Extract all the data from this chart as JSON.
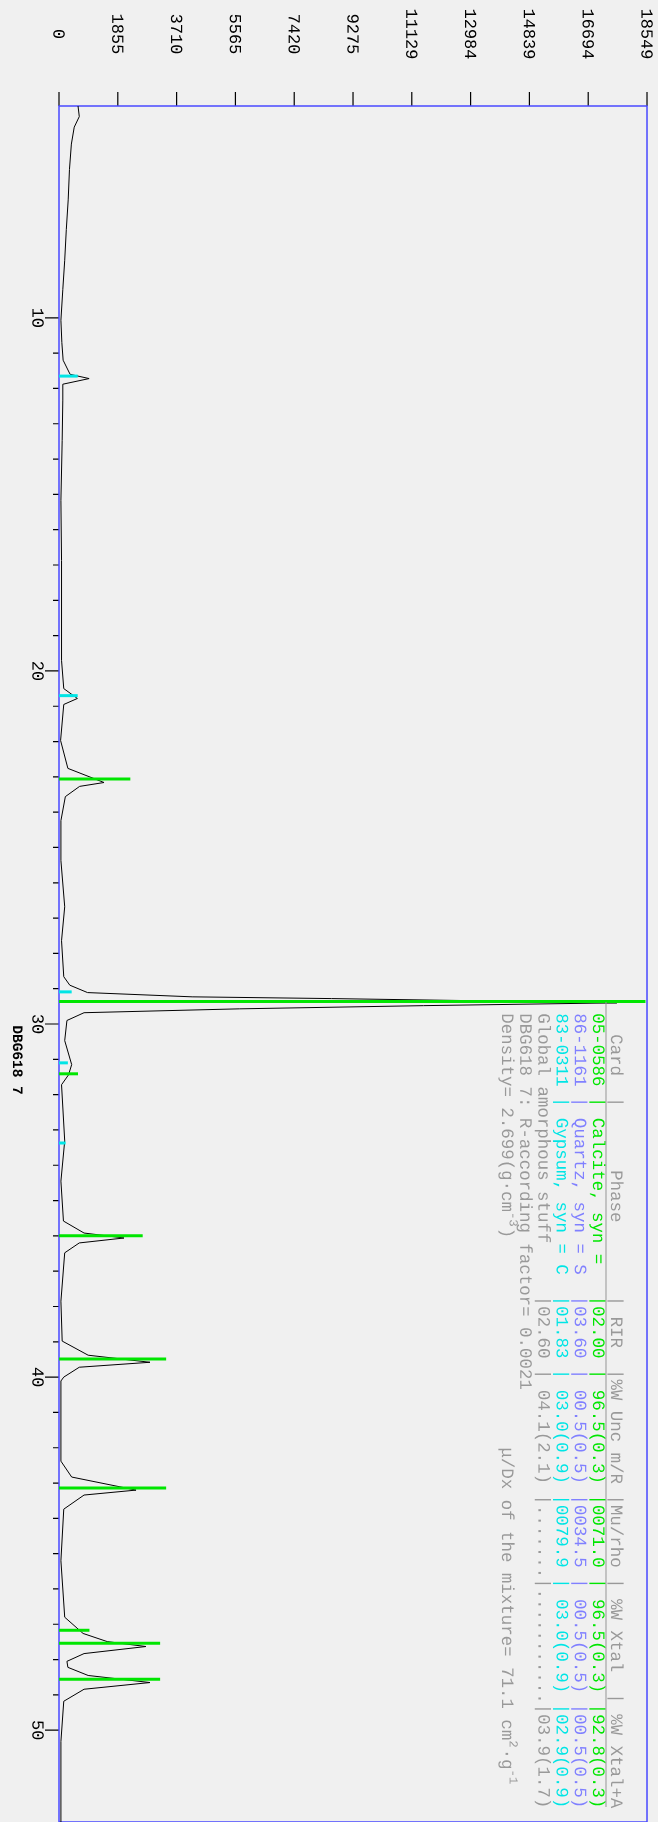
{
  "chart_data": {
    "type": "line",
    "orientation": "horizontal",
    "xlim": [
      0,
      18549
    ],
    "ylim": [
      52.6,
      4
    ],
    "xticks": [
      0,
      1855,
      3710,
      5565,
      7420,
      9275,
      11129,
      12984,
      14839,
      16694,
      18549
    ],
    "yticks": [
      10,
      20,
      30,
      40,
      50
    ],
    "series": [
      {
        "color": "#000000",
        "x": [
          4.0,
          4.3,
          4.6,
          5.08,
          5.8,
          6.66,
          7.5,
          8.37,
          9.2,
          10.07,
          10.7,
          11.2,
          11.6,
          11.72,
          11.88,
          12.33,
          13.47,
          15.17,
          16.87,
          17.43,
          19.7,
          20.5,
          20.78,
          20.95,
          21.97,
          22.76,
          23.16,
          23.27,
          23.56,
          24.24,
          25.37,
          26.68,
          27.64,
          28.66,
          28.9,
          29.11,
          29.23,
          29.28,
          29.4,
          29.48,
          29.57,
          29.68,
          29.9,
          30.47,
          31.15,
          31.44,
          31.72,
          33.31,
          34.45,
          35.58,
          35.92,
          36.06,
          36.2,
          36.48,
          37.85,
          38.98,
          39.38,
          39.58,
          39.72,
          40.0,
          40.11,
          42.38,
          42.83,
          43.2,
          43.34,
          43.74,
          45.2,
          46.8,
          47.26,
          47.49,
          47.63,
          47.83,
          48.05,
          48.22,
          48.45,
          48.65,
          48.84,
          49.18,
          50.32,
          52.6
        ],
        "values": [
          600,
          640,
          480,
          390,
          330,
          290,
          230,
          180,
          120,
          60,
          90,
          130,
          350,
          950,
          120,
          120,
          100,
          60,
          80,
          80,
          80,
          150,
          580,
          150,
          50,
          280,
          1420,
          650,
          200,
          60,
          60,
          180,
          80,
          150,
          340,
          900,
          4200,
          8600,
          17600,
          11500,
          5700,
          790,
          250,
          180,
          400,
          300,
          80,
          180,
          60,
          140,
          790,
          2050,
          640,
          180,
          60,
          100,
          920,
          2870,
          640,
          150,
          60,
          60,
          400,
          2430,
          790,
          150,
          60,
          180,
          760,
          1520,
          2740,
          790,
          250,
          280,
          920,
          2870,
          790,
          150,
          60,
          60
        ]
      },
      {
        "type": "bar",
        "color": "#00e600",
        "x": [
          23.06,
          29.36,
          31.41,
          36.0,
          39.49,
          43.14,
          47.17,
          47.54,
          48.56
        ],
        "values": [
          2250,
          18500,
          600,
          2640,
          3380,
          3380,
          960,
          3190,
          3190
        ]
      },
      {
        "type": "bar",
        "color": "#00e5e5",
        "x": [
          11.65,
          20.7,
          29.09,
          31.1,
          33.37
        ],
        "values": [
          590,
          590,
          400,
          280,
          210
        ]
      }
    ],
    "annotations": [
      "DBG618 7",
      "  Card  |      Phase       | RIR  |%W Unc m/R |Mu/rho | %W Xtal  | %W Xtal+A",
      "05-0586 | Calcite, syn =   |02.00 | 96.5(0.3) |0071.0 | 96.5(0.3) |92.8(0.3)",
      "86-1161 | Quartz, syn = S  |03.60 | 00.5(0.5) |0034.5 | 00.5(0.5) |00.5(0.5)",
      "83-0311 | Gypsum, syn = C  |01.83 | 03.0(0.9) |0079.9 | 03.0(0.9) |02.9(0.9)",
      "Global amorphous stuff     |02.60 | 04.1(2.1) |.......|...........|03.9(1.7)",
      "DBG618 7: R-according factor= 0.0021",
      "Density= 2.699(g·cm$^{-3}$)                    μ/Dx of the mixture= 71.1 cm$^{2}$·g$^{-1}$"
    ]
  }
}
